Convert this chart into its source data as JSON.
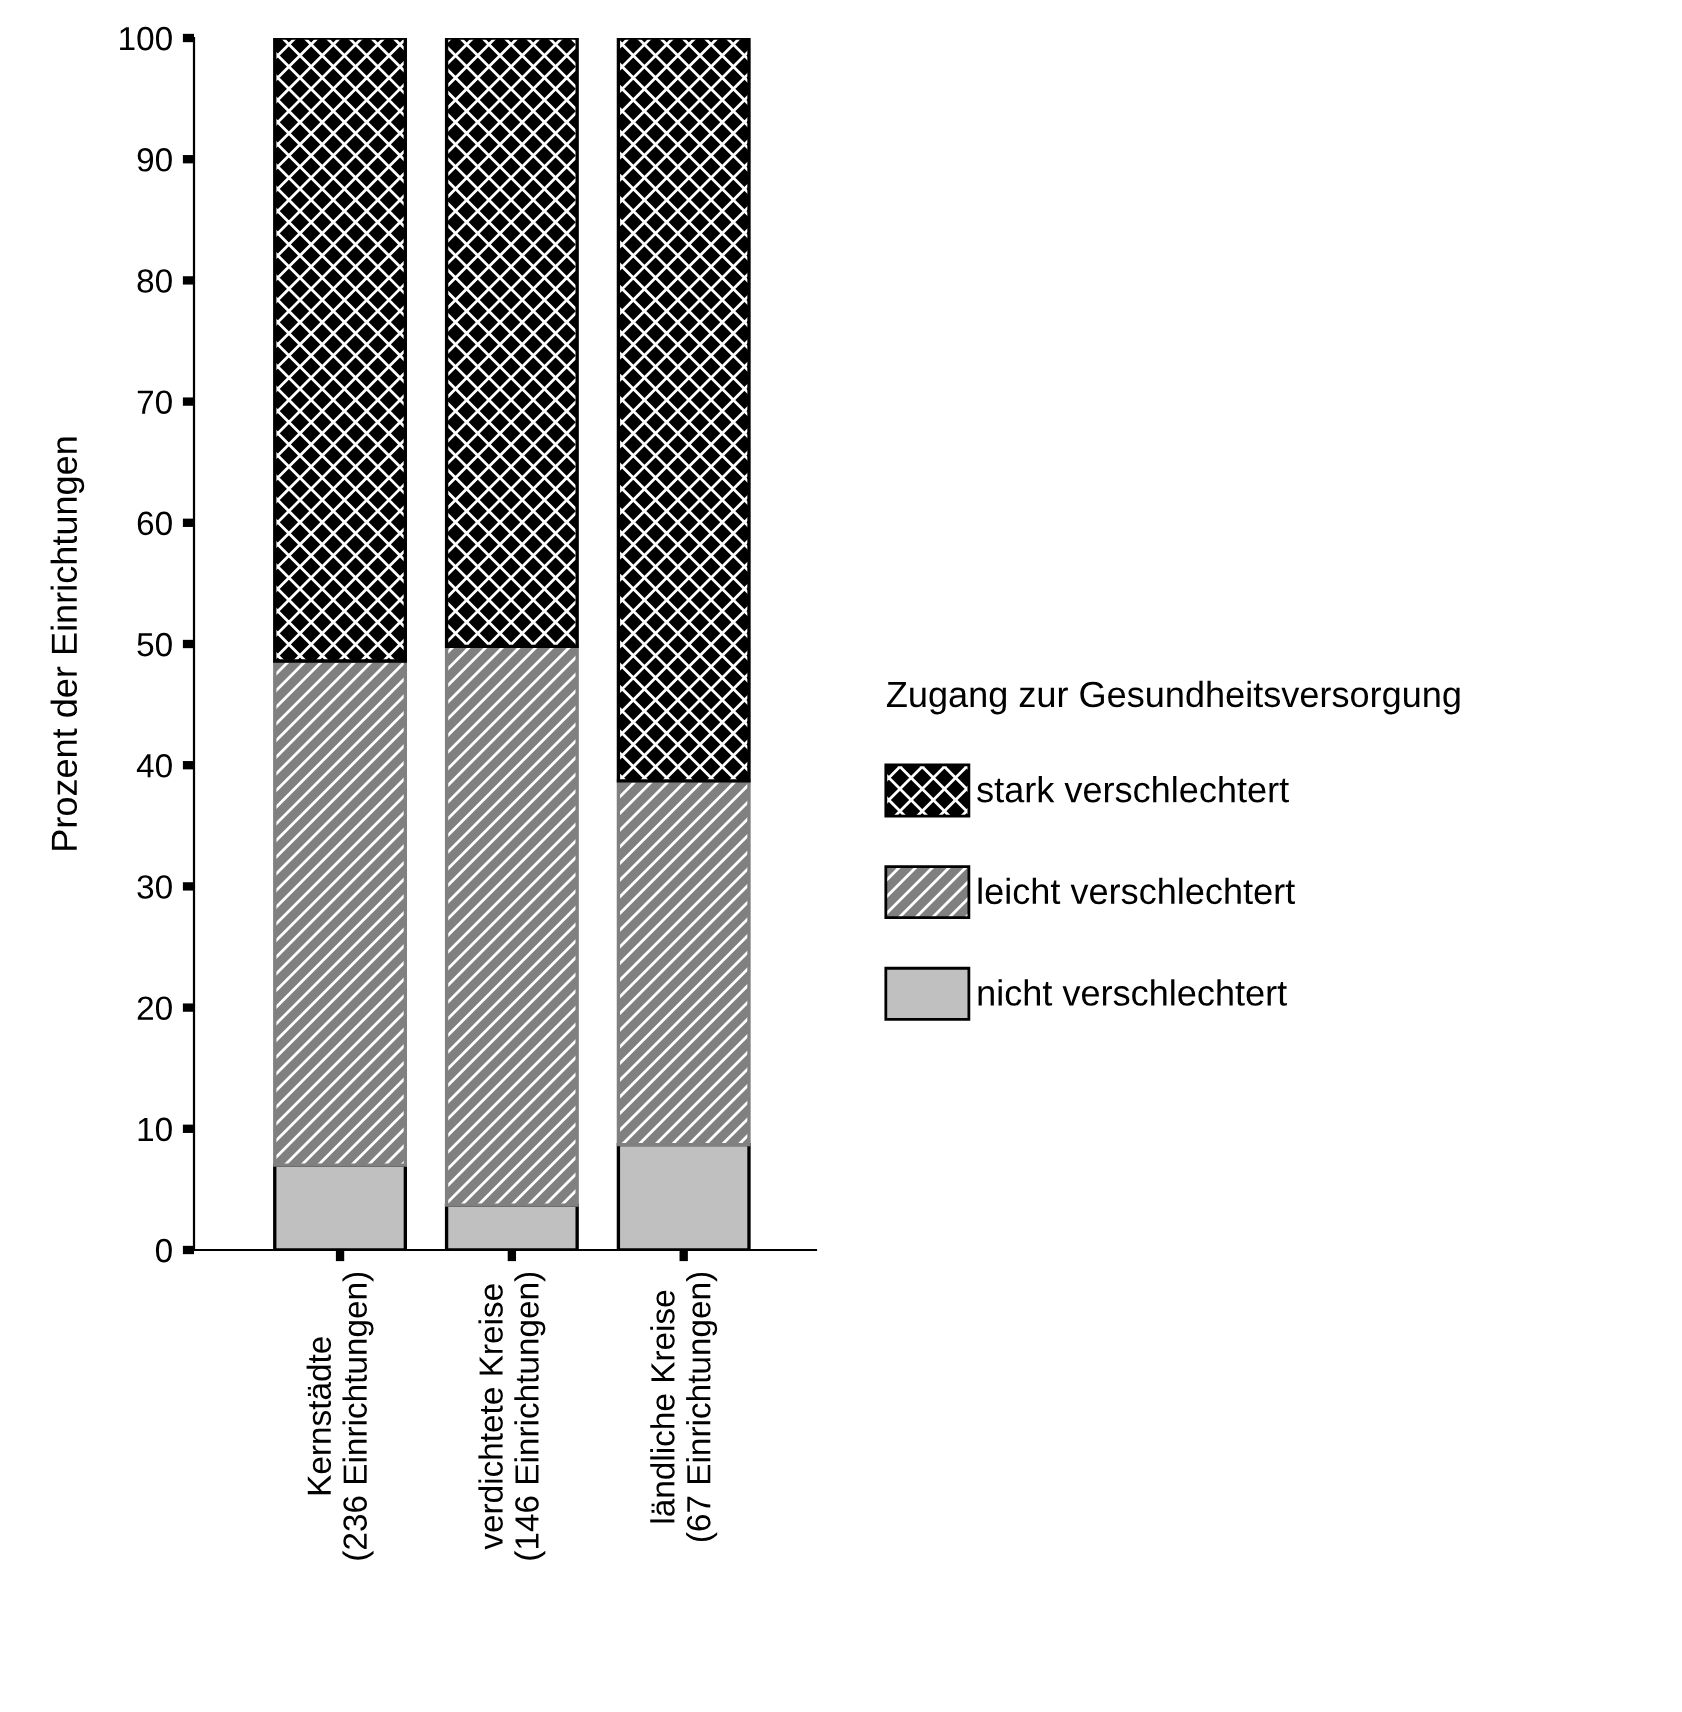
{
  "chart_data": {
    "type": "bar",
    "stacked": true,
    "ylabel": "Prozent der Einrichtungen",
    "legend_title": "Zugang zur Gesundheitsversorgung",
    "categories": [
      "Kernstädte\n(236 Einrichtungen)",
      "verdichtete Kreise\n(146 Einrichtungen)",
      "ländliche Kreise\n(67 Einrichtungen)"
    ],
    "series": [
      {
        "name": "nicht verschlechtert",
        "color": "#c0c0c0",
        "values": [
          7.0,
          3.7,
          8.7
        ]
      },
      {
        "name": "leicht verschlechtert",
        "color": "#808080",
        "values": [
          41.6,
          46.1,
          30.0
        ]
      },
      {
        "name": "stark verschlechtert",
        "color": "#000000",
        "values": [
          51.4,
          50.2,
          61.3
        ]
      }
    ],
    "ylim": [
      0,
      100
    ],
    "yticks": [
      0,
      10,
      20,
      30,
      40,
      50,
      60,
      70,
      80,
      90,
      100
    ],
    "grid": false,
    "legend": "right"
  }
}
